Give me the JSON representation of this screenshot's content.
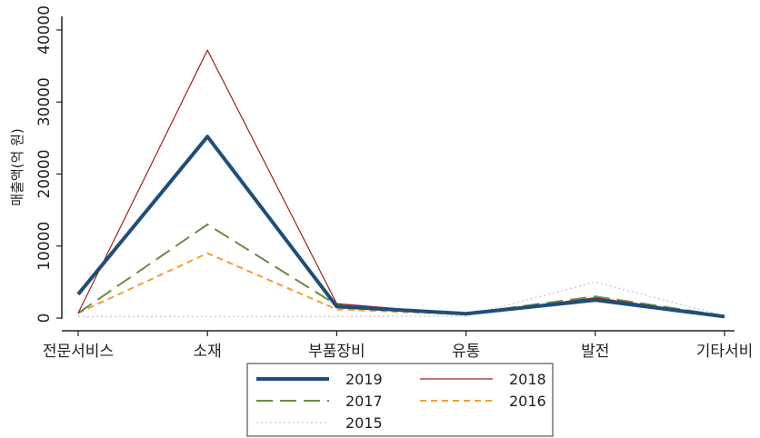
{
  "chart_data": {
    "type": "line",
    "title": "",
    "xlabel": "",
    "ylabel": "매출액(억 원)",
    "ylim": [
      0,
      40000
    ],
    "yticks": [
      0,
      10000,
      20000,
      30000,
      40000
    ],
    "categories": [
      "전문서비스",
      "소재",
      "부품장비",
      "유통",
      "발전",
      "기타서비"
    ],
    "grid": false,
    "legend_position": "bottom",
    "series": [
      {
        "name": "2019",
        "values": [
          3300,
          25200,
          1600,
          600,
          2500,
          200
        ],
        "color": "#1f4e79",
        "style": "solid-thick"
      },
      {
        "name": "2018",
        "values": [
          700,
          37200,
          2000,
          500,
          2800,
          300
        ],
        "color": "#a02020",
        "style": "solid-thin"
      },
      {
        "name": "2017",
        "values": [
          700,
          13000,
          1800,
          600,
          3000,
          300
        ],
        "color": "#6a8c4a",
        "style": "long-dash"
      },
      {
        "name": "2016",
        "values": [
          700,
          9000,
          1200,
          500,
          2800,
          300
        ],
        "color": "#f0a030",
        "style": "short-dash"
      },
      {
        "name": "2015",
        "values": [
          200,
          200,
          200,
          300,
          5000,
          300
        ],
        "color": "#c8d0d8",
        "style": "dotted"
      }
    ]
  }
}
